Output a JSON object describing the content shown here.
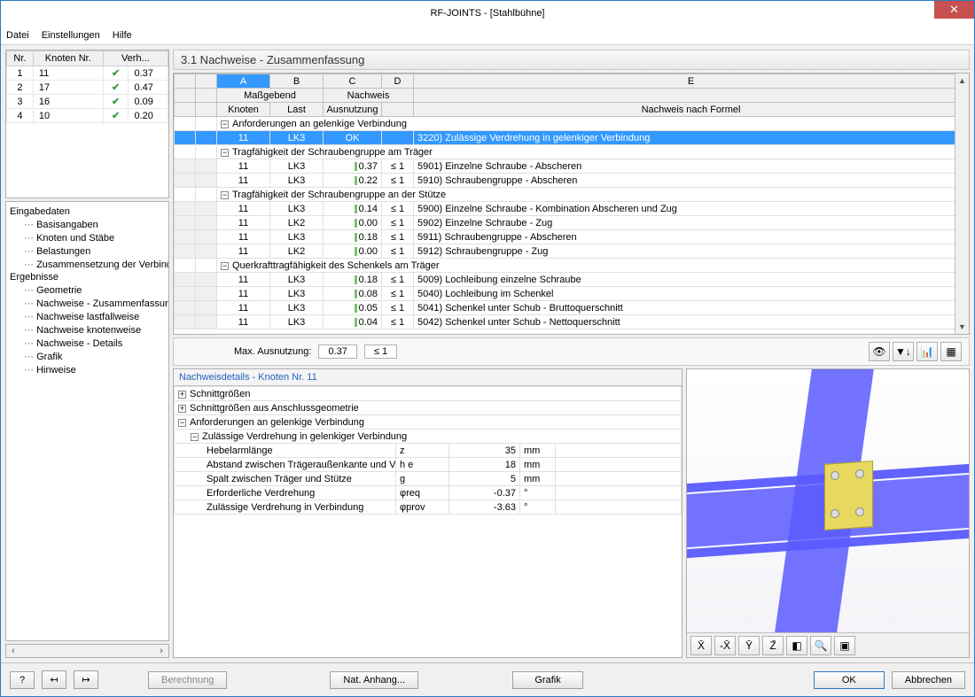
{
  "window": {
    "title": "RF-JOINTS - [Stahlbühne]",
    "close": "✕"
  },
  "menu": {
    "items": [
      "Datei",
      "Einstellungen",
      "Hilfe"
    ]
  },
  "nodeTable": {
    "headers": [
      "Nr.",
      "Knoten Nr.",
      "Verh..."
    ],
    "rows": [
      {
        "nr": "1",
        "knoten": "11",
        "verh": "0.37"
      },
      {
        "nr": "2",
        "knoten": "17",
        "verh": "0.47"
      },
      {
        "nr": "3",
        "knoten": "16",
        "verh": "0.09"
      },
      {
        "nr": "4",
        "knoten": "10",
        "verh": "0.20"
      }
    ]
  },
  "tree": {
    "groupA": "Eingabedaten",
    "a1": "Basisangaben",
    "a2": "Knoten und Stäbe",
    "a3": "Belastungen",
    "a4": "Zusammensetzung der Verbindu",
    "groupB": "Ergebnisse",
    "b1": "Geometrie",
    "b2": "Nachweise - Zusammenfassung",
    "b3": "Nachweise lastfallweise",
    "b4": "Nachweise knotenweise",
    "b5": "Nachweise - Details",
    "b6": "Grafik",
    "b7": "Hinweise"
  },
  "section_title": "3.1 Nachweise - Zusammenfassung",
  "cols": {
    "A": "A",
    "B": "B",
    "C": "C",
    "D": "D",
    "E": "E",
    "grp1": "Maßgebend",
    "grp2": "Nachweis",
    "h1": "Knoten",
    "h2": "Last",
    "h3": "Ausnutzung",
    "h4": "Nachweis nach Formel"
  },
  "groups": {
    "g1": "Anforderungen an gelenkige Verbindung",
    "g2": "Tragfähigkeit der Schraubengruppe am Träger",
    "g3": "Tragfähigkeit der Schraubengruppe an der Stütze",
    "g4": "Querkrafttragfähigkeit des Schenkels am Träger"
  },
  "rows": [
    {
      "k": "11",
      "l": "LK3",
      "u": "OK",
      "d": "3220) Zulässige Verdrehung in gelenkiger Verbindung",
      "sel": true
    },
    {
      "k": "11",
      "l": "LK3",
      "u": "0.37",
      "c": "≤ 1",
      "d": "5901) Einzelne Schraube - Abscheren"
    },
    {
      "k": "11",
      "l": "LK3",
      "u": "0.22",
      "c": "≤ 1",
      "d": "5910) Schraubengruppe - Abscheren"
    },
    {
      "k": "11",
      "l": "LK3",
      "u": "0.14",
      "c": "≤ 1",
      "d": "5900) Einzelne Schraube - Kombination Abscheren und Zug"
    },
    {
      "k": "11",
      "l": "LK2",
      "u": "0.00",
      "c": "≤ 1",
      "d": "5902) Einzelne Schraube - Zug"
    },
    {
      "k": "11",
      "l": "LK3",
      "u": "0.18",
      "c": "≤ 1",
      "d": "5911) Schraubengruppe - Abscheren"
    },
    {
      "k": "11",
      "l": "LK2",
      "u": "0.00",
      "c": "≤ 1",
      "d": "5912) Schraubengruppe - Zug"
    },
    {
      "k": "11",
      "l": "LK3",
      "u": "0.18",
      "c": "≤ 1",
      "d": "5009) Lochleibung einzelne Schraube"
    },
    {
      "k": "11",
      "l": "LK3",
      "u": "0.08",
      "c": "≤ 1",
      "d": "5040) Lochleibung im Schenkel"
    },
    {
      "k": "11",
      "l": "LK3",
      "u": "0.05",
      "c": "≤ 1",
      "d": "5041) Schenkel unter Schub - Bruttoquerschnitt"
    },
    {
      "k": "11",
      "l": "LK3",
      "u": "0.04",
      "c": "≤ 1",
      "d": "5042) Schenkel unter Schub - Nettoquerschnitt"
    }
  ],
  "max": {
    "label": "Max. Ausnutzung:",
    "val": "0.37",
    "cond": "≤ 1"
  },
  "details": {
    "title": "Nachweisdetails - Knoten Nr. 11",
    "s1": "Schnittgrößen",
    "s2": "Schnittgrößen aus Anschlussgeometrie",
    "s3": "Anforderungen an gelenkige Verbindung",
    "s4": "Zulässige Verdrehung in gelenkiger Verbindung",
    "rows": [
      {
        "n": "Hebelarmlänge",
        "sym": "z",
        "v": "35",
        "u": "mm"
      },
      {
        "n": "Abstand zwischen Trägeraußenkante und V",
        "sym": "h e",
        "v": "18",
        "u": "mm"
      },
      {
        "n": "Spalt zwischen Träger und Stütze",
        "sym": "g",
        "v": "5",
        "u": "mm"
      },
      {
        "n": "Erforderliche Verdrehung",
        "sym": "φreq",
        "v": "-0.37",
        "u": "°"
      },
      {
        "n": "Zulässige Verdrehung in Verbindung",
        "sym": "φprov",
        "v": "-3.63",
        "u": "°"
      }
    ]
  },
  "footer": {
    "calc": "Berechnung",
    "nat": "Nat. Anhang...",
    "grafik": "Grafik",
    "ok": "OK",
    "cancel": "Abbrechen"
  },
  "colors": {
    "accent": "#3399ff",
    "beam": "#5a5aff",
    "plate": "#e8d860"
  }
}
